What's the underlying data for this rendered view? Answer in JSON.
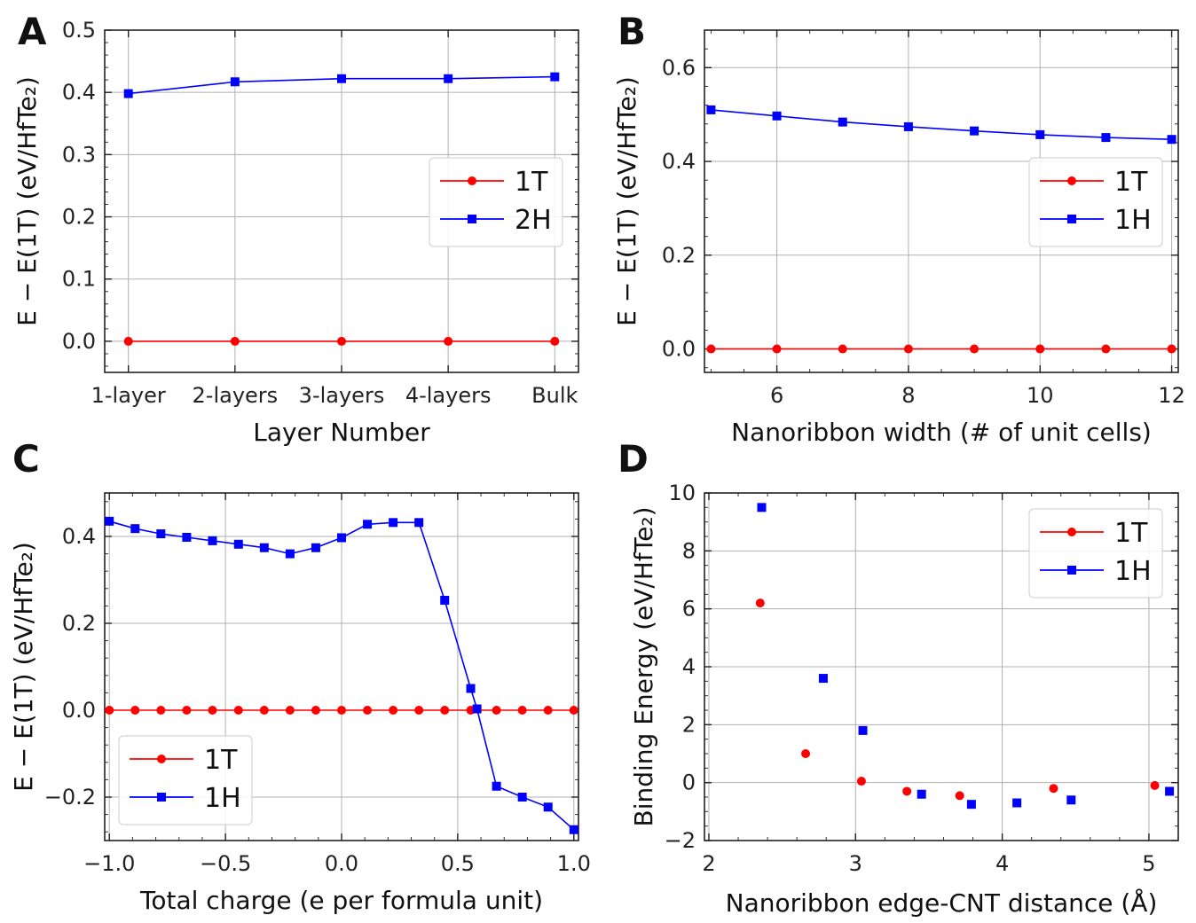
{
  "chart_data": [
    {
      "panel_label": "A",
      "type": "line",
      "categories": [
        "1-layer",
        "2-layers",
        "3-layers",
        "4-layers",
        "Bulk"
      ],
      "series": [
        {
          "name": "1T",
          "color": "#ff0000",
          "marker": "circle",
          "values": [
            0,
            0,
            0,
            0,
            0
          ]
        },
        {
          "name": "2H",
          "color": "#0000ff",
          "marker": "square",
          "values": [
            0.398,
            0.417,
            0.422,
            0.422,
            0.425
          ]
        }
      ],
      "xlabel": "Layer Number",
      "ylabel": "E − E(1T) (eV/HfTe₂)",
      "ylim": [
        -0.05,
        0.5
      ],
      "yticks": [
        "0.0",
        "0.1",
        "0.2",
        "0.3",
        "0.4",
        "0.5"
      ],
      "grid": true,
      "legend": "center-right"
    },
    {
      "panel_label": "B",
      "type": "line",
      "x": [
        5,
        6,
        7,
        8,
        9,
        10,
        11,
        12
      ],
      "series": [
        {
          "name": "1T",
          "color": "#ff0000",
          "marker": "circle",
          "values": [
            0,
            0,
            0,
            0,
            0,
            0,
            0,
            0
          ]
        },
        {
          "name": "1H",
          "color": "#0000ff",
          "marker": "square",
          "values": [
            0.51,
            0.497,
            0.484,
            0.474,
            0.465,
            0.457,
            0.451,
            0.447
          ]
        }
      ],
      "xlabel": "Nanoribbon width (# of unit cells)",
      "ylabel": "E − E(1T) (eV/HfTe₂)",
      "xlim": [
        4.9,
        12.1
      ],
      "ylim": [
        -0.05,
        0.68
      ],
      "xticks": [
        "6",
        "8",
        "10",
        "12"
      ],
      "yticks": [
        "0.0",
        "0.2",
        "0.4",
        "0.6"
      ],
      "grid": true,
      "legend": "center-right"
    },
    {
      "panel_label": "C",
      "type": "line",
      "x": [
        -1.0,
        -0.889,
        -0.778,
        -0.667,
        -0.556,
        -0.444,
        -0.333,
        -0.222,
        -0.111,
        0.0,
        0.111,
        0.222,
        0.333,
        0.444,
        0.556,
        0.583,
        0.667,
        0.778,
        0.889,
        1.0
      ],
      "series": [
        {
          "name": "1T",
          "color": "#ff0000",
          "marker": "circle",
          "x": [
            -1.0,
            -0.889,
            -0.778,
            -0.667,
            -0.556,
            -0.444,
            -0.333,
            -0.222,
            -0.111,
            0.0,
            0.111,
            0.222,
            0.333,
            0.444,
            0.556,
            0.667,
            0.778,
            0.889,
            1.0
          ],
          "values": [
            0,
            0,
            0,
            0,
            0,
            0,
            0,
            0,
            0,
            0,
            0,
            0,
            0,
            0,
            0,
            0,
            0,
            0,
            0
          ]
        },
        {
          "name": "1H",
          "color": "#0000ff",
          "marker": "square",
          "x": [
            -1.0,
            -0.889,
            -0.778,
            -0.667,
            -0.556,
            -0.444,
            -0.333,
            -0.222,
            -0.111,
            0.0,
            0.111,
            0.222,
            0.333,
            0.444,
            0.556,
            0.583,
            0.667,
            0.778,
            0.889,
            1.0
          ],
          "values": [
            0.435,
            0.418,
            0.406,
            0.398,
            0.39,
            0.382,
            0.374,
            0.36,
            0.374,
            0.397,
            0.428,
            0.432,
            0.432,
            0.253,
            0.05,
            0.003,
            -0.175,
            -0.2,
            -0.223,
            -0.275
          ]
        }
      ],
      "xlabel": "Total charge (e per formula unit)",
      "ylabel": "E − E(1T) (eV/HfTe₂)",
      "xlim": [
        -1.02,
        1.02
      ],
      "ylim": [
        -0.3,
        0.5
      ],
      "xticks": [
        "−1.0",
        "−0.5",
        "0.0",
        "0.5",
        "1.0"
      ],
      "yticks": [
        "−0.2",
        "0.0",
        "0.2",
        "0.4"
      ],
      "grid": true,
      "legend": "bottom-left"
    },
    {
      "panel_label": "D",
      "type": "scatter",
      "series": [
        {
          "name": "1T",
          "color": "#ff0000",
          "marker": "circle",
          "x": [
            2.35,
            2.66,
            3.04,
            3.35,
            3.71,
            4.35,
            5.04
          ],
          "values": [
            6.2,
            1.0,
            0.05,
            -0.3,
            -0.45,
            -0.2,
            -0.1
          ]
        },
        {
          "name": "1H",
          "color": "#0000ff",
          "marker": "square",
          "x": [
            2.36,
            2.78,
            3.05,
            3.45,
            3.79,
            4.1,
            4.47,
            5.14
          ],
          "values": [
            9.5,
            3.6,
            1.8,
            -0.4,
            -0.75,
            -0.7,
            -0.6,
            -0.3
          ]
        }
      ],
      "xlabel": "Nanoribbon edge-CNT distance (Å)",
      "ylabel": "Binding Energy (eV/HfTe₂)",
      "xlim": [
        1.97,
        5.2
      ],
      "ylim": [
        -2,
        10
      ],
      "xticks": [
        "2",
        "3",
        "4",
        "5"
      ],
      "yticks": [
        "−2",
        "0",
        "2",
        "4",
        "6",
        "8",
        "10"
      ],
      "grid": true,
      "legend": "top-right"
    }
  ]
}
